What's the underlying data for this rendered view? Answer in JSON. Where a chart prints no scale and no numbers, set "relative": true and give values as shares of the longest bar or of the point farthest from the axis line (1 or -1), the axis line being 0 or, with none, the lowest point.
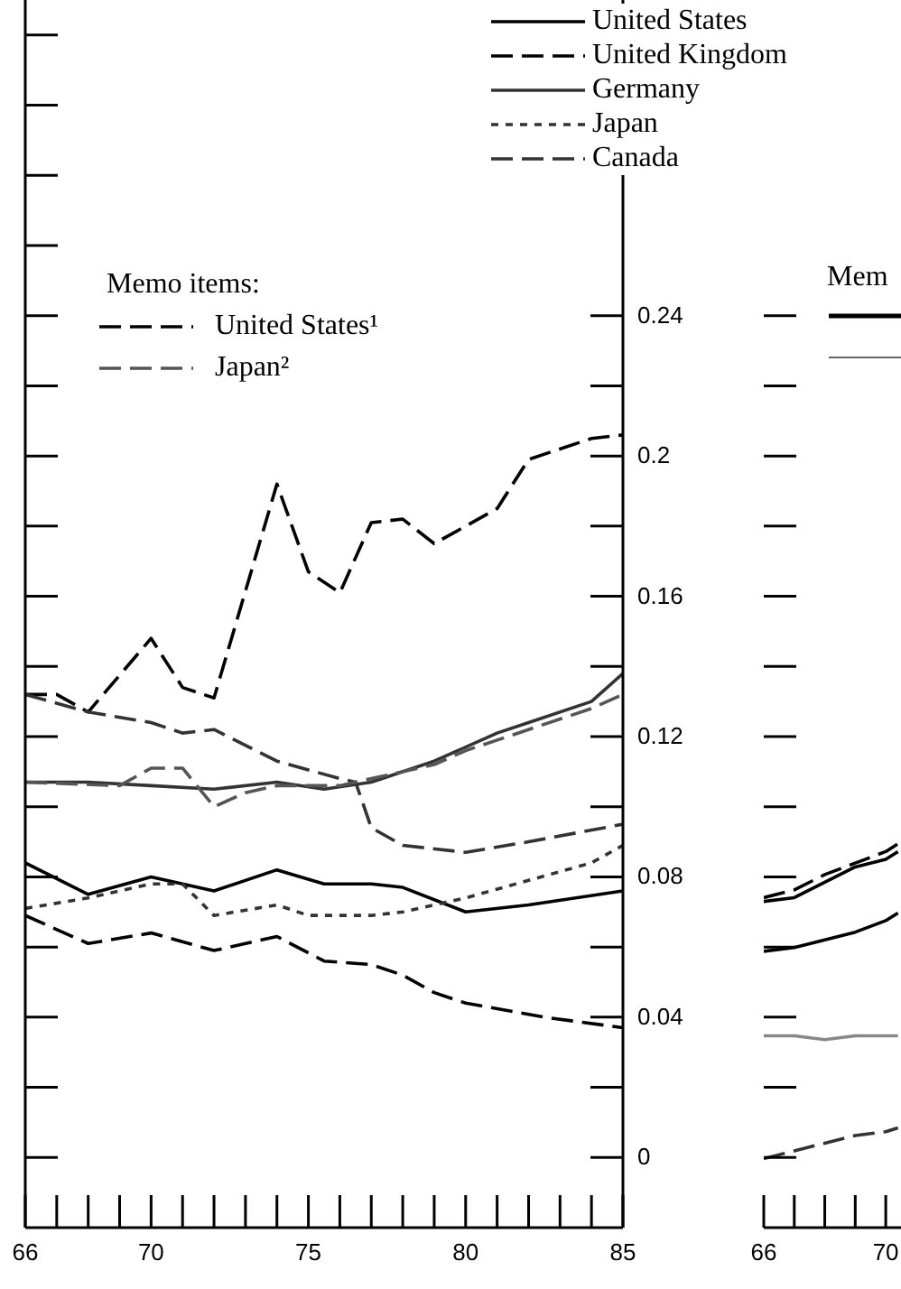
{
  "chart_data": [
    {
      "type": "line",
      "legend": "top right",
      "legend_title": "Memo items:",
      "xlim": [
        66,
        85
      ],
      "xticks": [
        66,
        70,
        75,
        80,
        85
      ],
      "ylim": [
        -0.02,
        0.33
      ],
      "yticks": [
        0,
        0.04,
        0.08,
        0.12,
        0.16,
        0.2,
        0.24
      ],
      "series": [
        {
          "name": "United States",
          "color": "#000000",
          "line_style": "solid",
          "x": [
            66,
            68,
            70,
            72,
            74,
            75.5,
            77,
            78,
            80,
            82,
            85
          ],
          "values": [
            0.084,
            0.075,
            0.08,
            0.076,
            0.082,
            0.078,
            0.078,
            0.077,
            0.07,
            0.072,
            0.076
          ]
        },
        {
          "name": "United Kingdom",
          "color": "#000000",
          "line_style": "dashed",
          "x": [
            66,
            67,
            68,
            70,
            71,
            72,
            74,
            75,
            76,
            77,
            78,
            79,
            81,
            82,
            84,
            85
          ],
          "values": [
            0.132,
            0.132,
            0.127,
            0.148,
            0.134,
            0.131,
            0.192,
            0.167,
            0.161,
            0.181,
            0.182,
            0.175,
            0.185,
            0.199,
            0.205,
            0.206
          ]
        },
        {
          "name": "Germany",
          "color": "#333333",
          "line_style": "solid",
          "x": [
            66,
            68,
            70,
            72,
            74,
            75.5,
            77,
            79,
            81,
            82,
            84,
            85
          ],
          "values": [
            0.107,
            0.107,
            0.106,
            0.105,
            0.107,
            0.105,
            0.107,
            0.113,
            0.121,
            0.124,
            0.13,
            0.138
          ]
        },
        {
          "name": "Japan",
          "color": "#333333",
          "line_style": "dotted",
          "x": [
            66,
            68,
            70,
            71,
            72,
            74,
            75,
            77,
            78,
            80,
            82,
            84,
            85
          ],
          "values": [
            0.071,
            0.074,
            0.078,
            0.078,
            0.069,
            0.072,
            0.069,
            0.069,
            0.07,
            0.074,
            0.079,
            0.084,
            0.089
          ]
        },
        {
          "name": "Canada",
          "color": "#333333",
          "line_style": "dashed",
          "x": [
            66,
            68,
            70,
            71,
            72,
            74,
            76,
            76.5,
            77,
            78,
            80,
            82,
            85
          ],
          "values": [
            0.132,
            0.127,
            0.124,
            0.121,
            0.122,
            0.113,
            0.108,
            0.107,
            0.094,
            0.089,
            0.087,
            0.09,
            0.095
          ]
        },
        {
          "name": "United States¹",
          "color": "#000000",
          "line_style": "dashed",
          "x": [
            66,
            68,
            70,
            72,
            74,
            75.5,
            77,
            78,
            79,
            80,
            82.5,
            85
          ],
          "values": [
            0.069,
            0.061,
            0.064,
            0.059,
            0.063,
            0.056,
            0.055,
            0.052,
            0.047,
            0.044,
            0.04,
            0.037
          ]
        },
        {
          "name": "Japan²",
          "color": "#555555",
          "line_style": "dashed",
          "x": [
            66,
            69,
            70,
            71,
            72,
            73,
            74,
            76,
            77,
            79,
            80,
            82,
            84,
            85
          ],
          "values": [
            0.107,
            0.106,
            0.111,
            0.111,
            0.1,
            0.104,
            0.106,
            0.106,
            0.108,
            0.112,
            0.116,
            0.122,
            0.128,
            0.132
          ]
        }
      ]
    },
    {
      "type": "line",
      "tick_labels": "x",
      "relative": true,
      "annotations": [
        "Mem"
      ],
      "xlim": [
        66,
        70.5
      ],
      "xticks": [
        66,
        70
      ],
      "series": [
        {
          "color": "#000000",
          "line_style": "solid",
          "x": [
            66,
            67,
            68,
            69,
            70,
            70.4
          ],
          "values": [
            0.85,
            0.86,
            0.9,
            0.94,
            0.96,
            0.98
          ]
        },
        {
          "color": "#000000",
          "line_style": "dashed",
          "x": [
            66,
            67,
            68,
            69,
            70,
            70.4
          ],
          "values": [
            0.86,
            0.88,
            0.92,
            0.95,
            0.98,
            1
          ]
        },
        {
          "color": "#000000",
          "line_style": "solid",
          "x": [
            66,
            67,
            68,
            69,
            70,
            70.4
          ],
          "values": [
            0.72,
            0.73,
            0.75,
            0.77,
            0.8,
            0.82
          ]
        },
        {
          "color": "#888888",
          "line_style": "solid",
          "x": [
            66,
            67,
            68,
            69,
            70,
            70.4
          ],
          "values": [
            0.5,
            0.5,
            0.49,
            0.5,
            0.5,
            0.5
          ]
        },
        {
          "color": "#333333",
          "line_style": "dashed",
          "x": [
            66,
            67,
            68,
            69,
            70,
            70.4
          ],
          "values": [
            0.18,
            0.2,
            0.22,
            0.24,
            0.25,
            0.26
          ]
        }
      ]
    }
  ]
}
